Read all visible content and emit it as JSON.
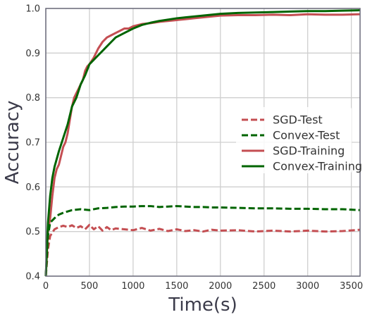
{
  "chart_data": {
    "type": "line",
    "xlabel": "Time(s)",
    "ylabel": "Accuracy",
    "xlim": [
      0,
      3600
    ],
    "ylim": [
      0.4,
      1.0
    ],
    "x_ticks": [
      "0",
      "500",
      "1000",
      "1500",
      "2000",
      "2500",
      "3000",
      "3500"
    ],
    "y_ticks": [
      "0.4",
      "0.5",
      "0.6",
      "0.7",
      "0.8",
      "0.9",
      "1.0"
    ],
    "grid": true,
    "legend_position": "center-right",
    "series": [
      {
        "name": "SGD-Test",
        "color": "#c44e52",
        "style": "dashed",
        "x": [
          0,
          25,
          50,
          100,
          150,
          200,
          250,
          300,
          350,
          400,
          450,
          500,
          550,
          600,
          650,
          700,
          750,
          800,
          900,
          1000,
          1100,
          1200,
          1300,
          1400,
          1500,
          1600,
          1700,
          1800,
          1900,
          2000,
          2200,
          2400,
          2600,
          2800,
          3000,
          3200,
          3400,
          3600
        ],
        "y": [
          0.4,
          0.46,
          0.49,
          0.505,
          0.51,
          0.513,
          0.51,
          0.514,
          0.508,
          0.512,
          0.505,
          0.515,
          0.505,
          0.512,
          0.502,
          0.51,
          0.503,
          0.507,
          0.505,
          0.503,
          0.508,
          0.502,
          0.506,
          0.501,
          0.505,
          0.501,
          0.503,
          0.5,
          0.504,
          0.502,
          0.503,
          0.5,
          0.502,
          0.5,
          0.502,
          0.5,
          0.501,
          0.504
        ]
      },
      {
        "name": "Convex-Test",
        "color": "#006400",
        "style": "dashed",
        "x": [
          0,
          25,
          50,
          100,
          150,
          200,
          250,
          300,
          400,
          500,
          600,
          700,
          800,
          900,
          1000,
          1100,
          1200,
          1300,
          1400,
          1500,
          1600,
          1700,
          1800,
          1900,
          2000,
          2200,
          2400,
          2600,
          2800,
          3000,
          3200,
          3400,
          3500,
          3600
        ],
        "y": [
          0.4,
          0.49,
          0.52,
          0.53,
          0.538,
          0.542,
          0.545,
          0.548,
          0.55,
          0.548,
          0.552,
          0.553,
          0.555,
          0.556,
          0.556,
          0.557,
          0.557,
          0.555,
          0.556,
          0.557,
          0.556,
          0.555,
          0.555,
          0.554,
          0.554,
          0.553,
          0.552,
          0.552,
          0.551,
          0.551,
          0.55,
          0.55,
          0.549,
          0.548
        ]
      },
      {
        "name": "SGD-Training",
        "color": "#c44e52",
        "style": "solid",
        "x": [
          0,
          25,
          50,
          75,
          100,
          125,
          150,
          175,
          200,
          225,
          250,
          275,
          300,
          325,
          350,
          375,
          400,
          425,
          450,
          475,
          500,
          550,
          600,
          650,
          700,
          750,
          800,
          850,
          900,
          950,
          1000,
          1100,
          1200,
          1300,
          1400,
          1500,
          1600,
          1700,
          1800,
          1900,
          2000,
          2200,
          2400,
          2600,
          2800,
          3000,
          3200,
          3400,
          3600
        ],
        "y": [
          0.4,
          0.5,
          0.53,
          0.58,
          0.62,
          0.64,
          0.65,
          0.67,
          0.69,
          0.7,
          0.72,
          0.75,
          0.78,
          0.8,
          0.81,
          0.82,
          0.83,
          0.84,
          0.86,
          0.87,
          0.875,
          0.89,
          0.91,
          0.925,
          0.935,
          0.94,
          0.945,
          0.95,
          0.955,
          0.955,
          0.96,
          0.965,
          0.967,
          0.97,
          0.972,
          0.974,
          0.976,
          0.978,
          0.98,
          0.982,
          0.984,
          0.985,
          0.985,
          0.986,
          0.985,
          0.987,
          0.986,
          0.986,
          0.987
        ]
      },
      {
        "name": "Convex-Training",
        "color": "#006400",
        "style": "solid",
        "x": [
          0,
          25,
          50,
          75,
          100,
          150,
          200,
          250,
          300,
          350,
          400,
          450,
          500,
          550,
          600,
          650,
          700,
          750,
          800,
          900,
          1000,
          1100,
          1200,
          1300,
          1400,
          1500,
          1600,
          1700,
          1800,
          1900,
          2000,
          2200,
          2400,
          2600,
          2800,
          3000,
          3200,
          3400,
          3600
        ],
        "y": [
          0.4,
          0.52,
          0.58,
          0.62,
          0.645,
          0.68,
          0.71,
          0.74,
          0.78,
          0.8,
          0.83,
          0.85,
          0.875,
          0.885,
          0.895,
          0.905,
          0.915,
          0.925,
          0.935,
          0.945,
          0.955,
          0.963,
          0.968,
          0.972,
          0.975,
          0.978,
          0.98,
          0.982,
          0.984,
          0.986,
          0.988,
          0.99,
          0.991,
          0.992,
          0.993,
          0.994,
          0.994,
          0.995,
          0.996
        ]
      }
    ]
  }
}
